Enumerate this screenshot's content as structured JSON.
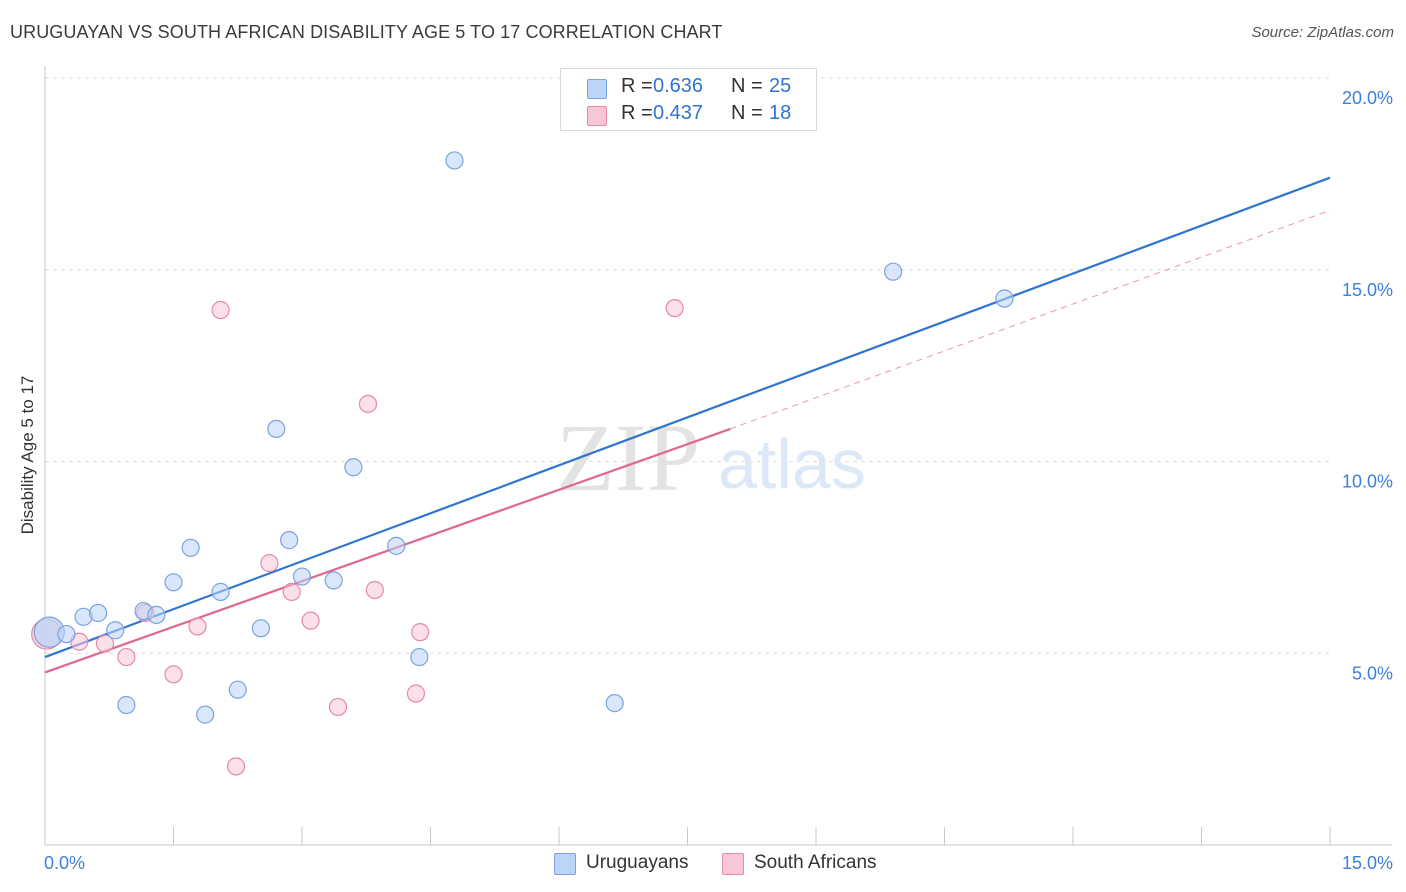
{
  "title": "URUGUAYAN VS SOUTH AFRICAN DISABILITY AGE 5 TO 17 CORRELATION CHART",
  "source": "Source: ZipAtlas.com",
  "watermark": {
    "zip": "ZIP",
    "atlas": "atlas"
  },
  "legend": {
    "r_label": "R =",
    "n_label": "N =",
    "series": [
      {
        "name": "Uruguayans",
        "r": "0.636",
        "n": "25",
        "fill": "#bcd4f5",
        "stroke": "#7aa3e0"
      },
      {
        "name": "South Africans",
        "r": "0.437",
        "n": "18",
        "fill": "#f8c7d5",
        "stroke": "#e58aa8"
      }
    ]
  },
  "chart_data": {
    "type": "scatter",
    "title": "URUGUAYAN VS SOUTH AFRICAN DISABILITY AGE 5 TO 17 CORRELATION CHART",
    "xlabel": "",
    "ylabel": "Disability Age 5 to 17",
    "xlim": [
      0,
      15
    ],
    "ylim": [
      0,
      20
    ],
    "x_ticks": [
      {
        "value": 0,
        "label": "0.0%"
      },
      {
        "value": 15,
        "label": "15.0%"
      }
    ],
    "y_ticks": [
      {
        "value": 5,
        "label": "5.0%"
      },
      {
        "value": 10,
        "label": "10.0%"
      },
      {
        "value": 15,
        "label": "15.0%"
      },
      {
        "value": 20,
        "label": "20.0%"
      }
    ],
    "grid": true,
    "legend_position": "top-center",
    "series": [
      {
        "name": "Uruguayans",
        "color": "#2f74d0",
        "points": [
          [
            0.05,
            5.55
          ],
          [
            0.25,
            5.5
          ],
          [
            0.45,
            5.95
          ],
          [
            0.62,
            6.05
          ],
          [
            0.82,
            5.6
          ],
          [
            0.95,
            3.65
          ],
          [
            1.15,
            6.1
          ],
          [
            1.3,
            6.0
          ],
          [
            1.5,
            6.85
          ],
          [
            1.7,
            7.75
          ],
          [
            1.87,
            3.4
          ],
          [
            2.05,
            6.6
          ],
          [
            2.25,
            4.05
          ],
          [
            2.52,
            5.65
          ],
          [
            2.7,
            10.85
          ],
          [
            2.85,
            7.95
          ],
          [
            3.0,
            7.0
          ],
          [
            3.37,
            6.9
          ],
          [
            3.6,
            9.85
          ],
          [
            4.1,
            7.8
          ],
          [
            4.37,
            4.9
          ],
          [
            4.78,
            17.85
          ],
          [
            6.65,
            3.7
          ],
          [
            9.9,
            14.95
          ],
          [
            11.2,
            14.25
          ]
        ],
        "trend": {
          "x": [
            0,
            15
          ],
          "y": [
            4.9,
            17.4
          ],
          "style": "solid"
        }
      },
      {
        "name": "South Africans",
        "color": "#e0688e",
        "points": [
          [
            0.02,
            5.5
          ],
          [
            0.4,
            5.3
          ],
          [
            0.7,
            5.25
          ],
          [
            0.95,
            4.9
          ],
          [
            1.17,
            6.05
          ],
          [
            1.5,
            4.45
          ],
          [
            1.78,
            5.7
          ],
          [
            2.05,
            13.95
          ],
          [
            2.23,
            2.05
          ],
          [
            2.62,
            7.35
          ],
          [
            2.88,
            6.6
          ],
          [
            3.1,
            5.85
          ],
          [
            3.42,
            3.6
          ],
          [
            3.77,
            11.5
          ],
          [
            3.85,
            6.65
          ],
          [
            4.33,
            3.95
          ],
          [
            4.38,
            5.55
          ],
          [
            7.35,
            14.0
          ]
        ],
        "trend": {
          "x": [
            0,
            8
          ],
          "y": [
            4.5,
            10.85
          ],
          "style": "solid"
        },
        "trend_extension": {
          "x": [
            8,
            15
          ],
          "y": [
            10.85,
            16.55
          ],
          "style": "dashed"
        }
      }
    ]
  }
}
